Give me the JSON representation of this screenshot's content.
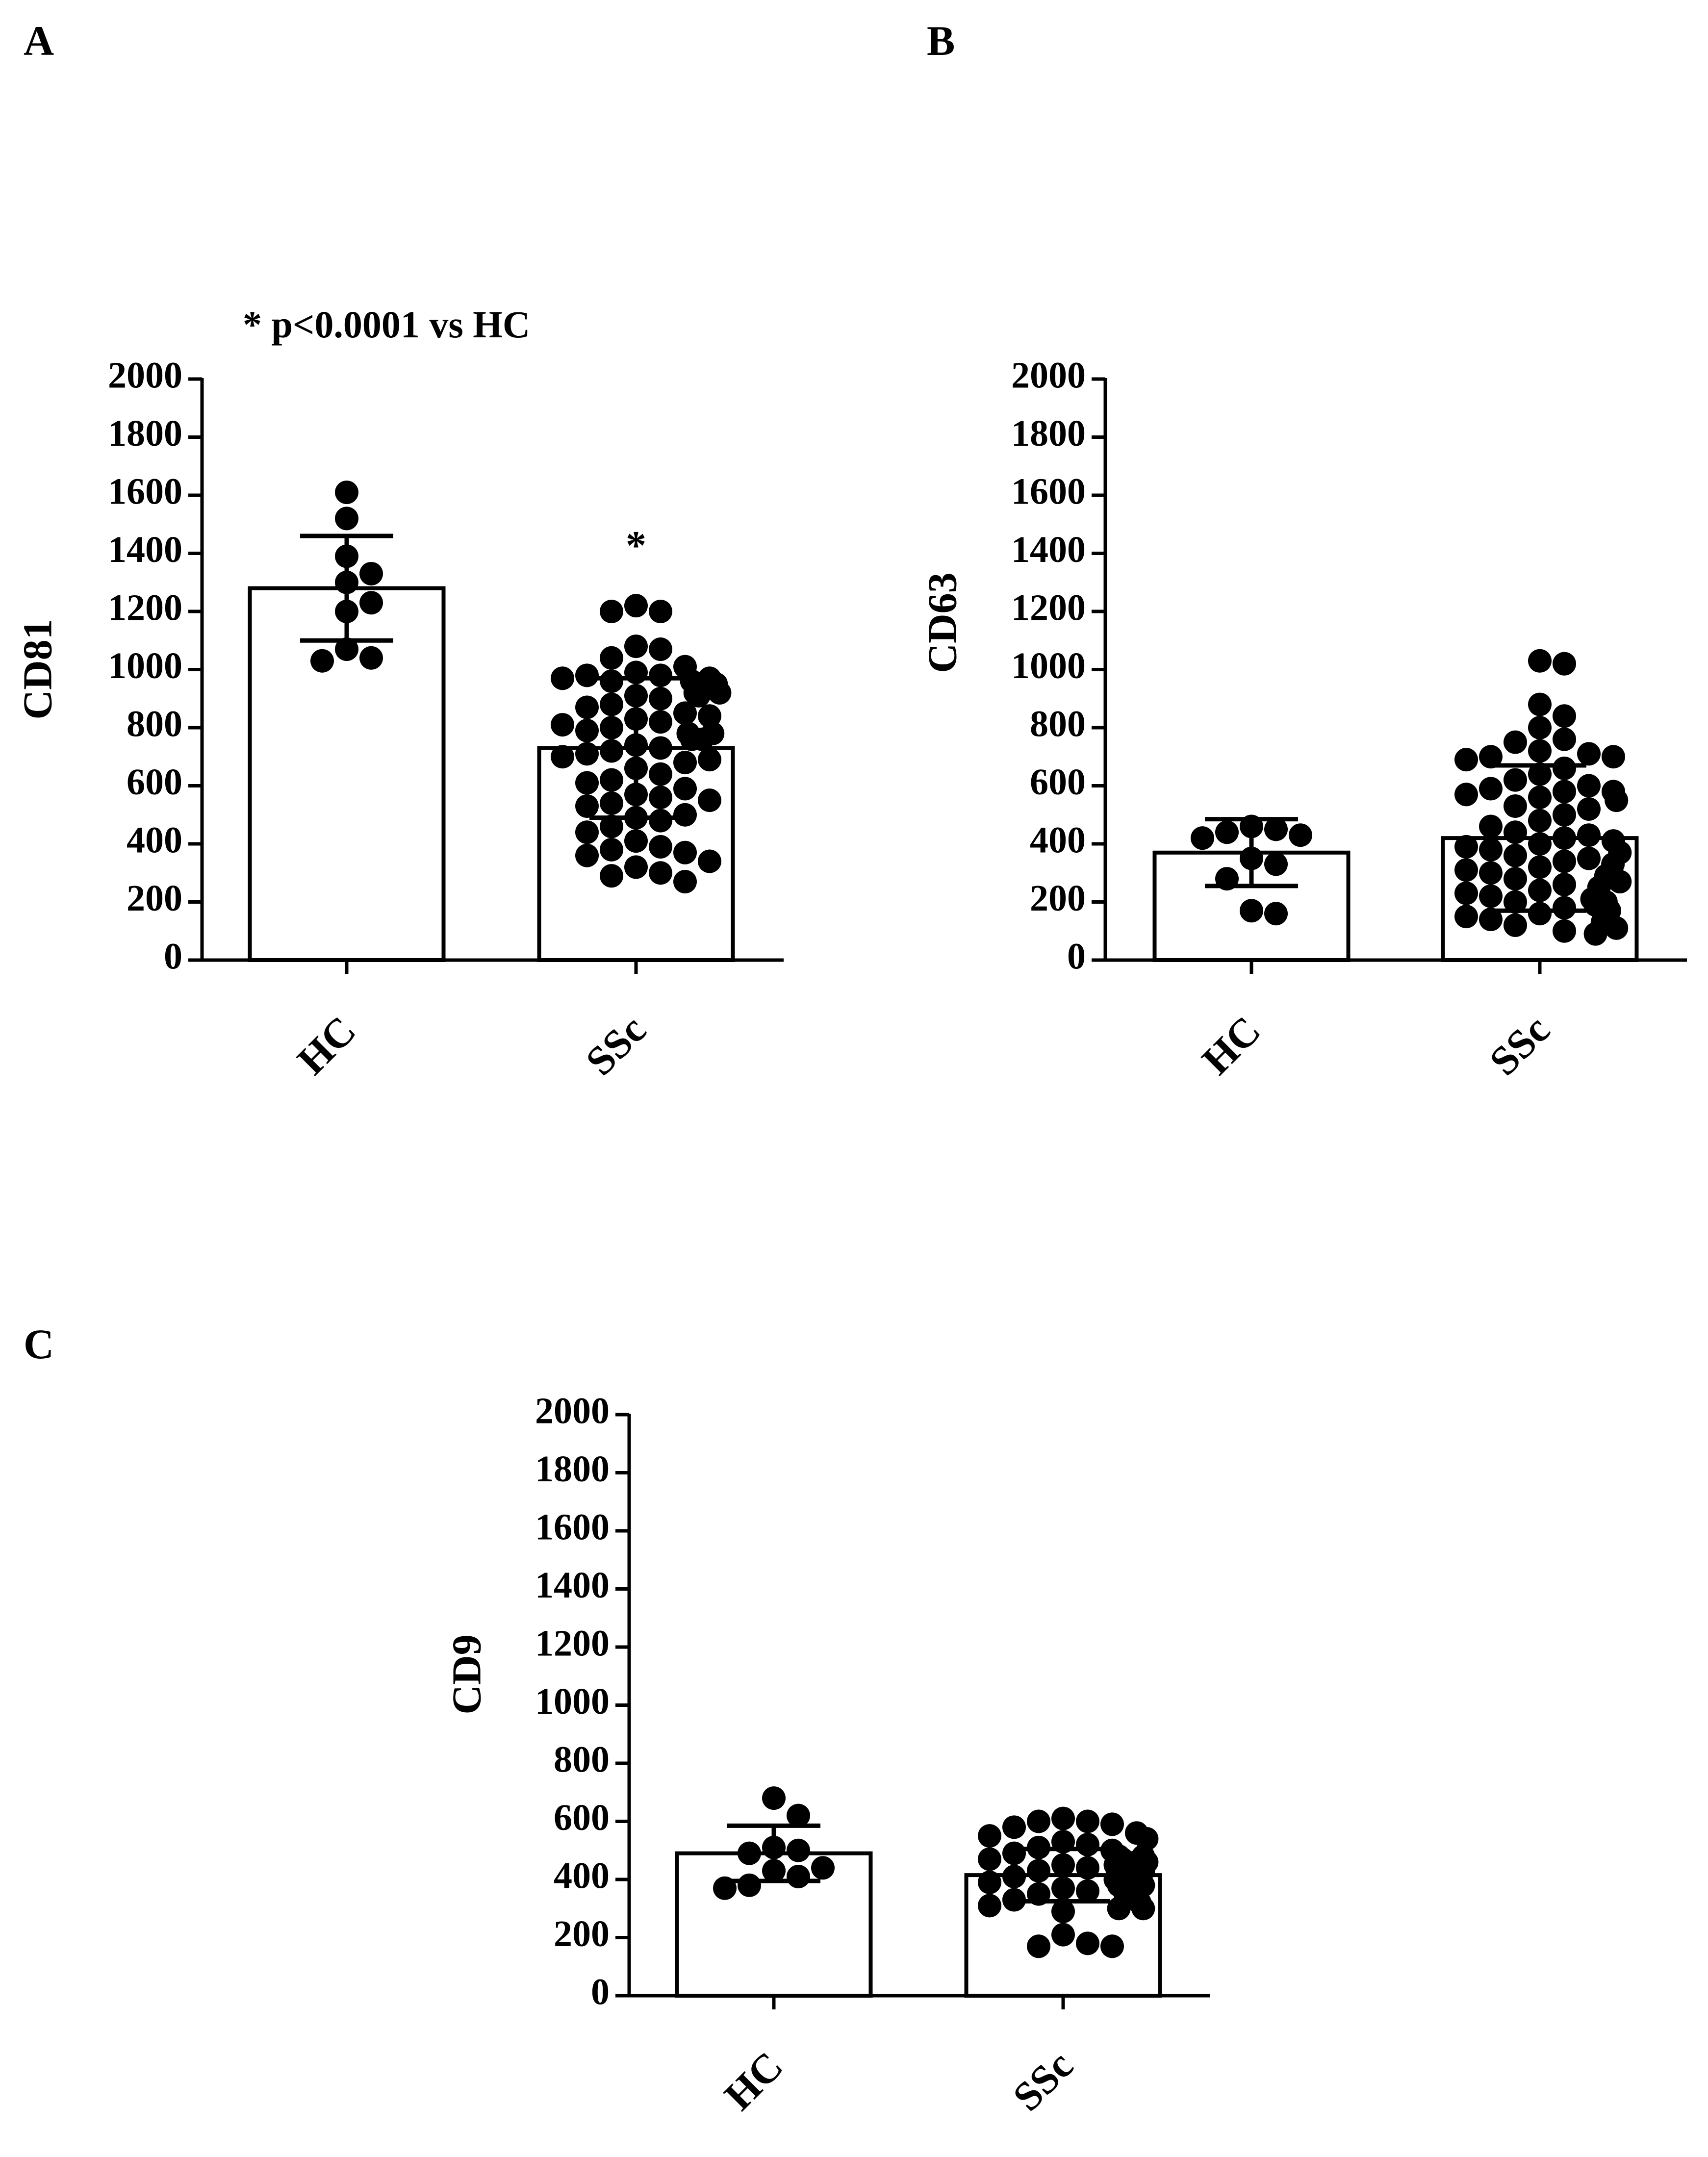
{
  "panels": [
    {
      "letter": "A"
    },
    {
      "letter": "B"
    },
    {
      "letter": "C"
    }
  ],
  "annotations": {
    "panel_a_note": "* p<0.0001 vs HC",
    "panel_a_star": "*"
  },
  "chart_data": [
    {
      "type": "bar",
      "panel": "A",
      "ylabel": "CD81",
      "xlabel": "",
      "ylim": [
        0,
        2000
      ],
      "yticks": [
        0,
        200,
        400,
        600,
        800,
        1000,
        1200,
        1400,
        1600,
        1800,
        2000
      ],
      "categories": [
        "HC",
        "SSc"
      ],
      "means": [
        1280,
        730
      ],
      "sd": [
        180,
        240
      ],
      "points": [
        [
          1610,
          1520,
          1390,
          1330,
          1300,
          1230,
          1200,
          1070,
          1040,
          1030
        ],
        [
          1220,
          1200,
          1200,
          1080,
          1070,
          1040,
          1010,
          990,
          980,
          980,
          970,
          970,
          960,
          960,
          950,
          950,
          920,
          920,
          910,
          910,
          900,
          880,
          870,
          850,
          840,
          830,
          820,
          810,
          800,
          790,
          780,
          780,
          760,
          760,
          740,
          730,
          720,
          710,
          700,
          690,
          680,
          660,
          640,
          620,
          610,
          590,
          570,
          560,
          550,
          540,
          530,
          500,
          490,
          480,
          460,
          440,
          410,
          390,
          380,
          370,
          360,
          340,
          320,
          300,
          290,
          270
        ]
      ]
    },
    {
      "type": "bar",
      "panel": "B",
      "ylabel": "CD63",
      "xlabel": "",
      "ylim": [
        0,
        2000
      ],
      "yticks": [
        0,
        200,
        400,
        600,
        800,
        1000,
        1200,
        1400,
        1600,
        1800,
        2000
      ],
      "categories": [
        "HC",
        "SSc"
      ],
      "means": [
        370,
        420
      ],
      "sd": [
        115,
        250
      ],
      "points": [
        [
          460,
          450,
          440,
          430,
          420,
          350,
          330,
          280,
          170,
          160
        ],
        [
          1030,
          1020,
          880,
          840,
          800,
          760,
          750,
          720,
          710,
          700,
          700,
          690,
          660,
          640,
          620,
          600,
          590,
          580,
          580,
          570,
          560,
          550,
          530,
          520,
          500,
          480,
          460,
          440,
          430,
          420,
          410,
          400,
          390,
          380,
          370,
          360,
          350,
          340,
          330,
          320,
          310,
          300,
          290,
          280,
          270,
          260,
          250,
          240,
          230,
          220,
          210,
          200,
          200,
          190,
          180,
          170,
          160,
          150,
          140,
          130,
          120,
          110,
          100,
          90
        ]
      ]
    },
    {
      "type": "bar",
      "panel": "C",
      "ylabel": "CD9",
      "xlabel": "",
      "ylim": [
        0,
        2000
      ],
      "yticks": [
        0,
        200,
        400,
        600,
        800,
        1000,
        1200,
        1400,
        1600,
        1800,
        2000
      ],
      "categories": [
        "HC",
        "SSc"
      ],
      "means": [
        490,
        415
      ],
      "sd": [
        95,
        90
      ],
      "points": [
        [
          680,
          620,
          510,
          500,
          490,
          440,
          430,
          410,
          380,
          370
        ],
        [
          610,
          600,
          600,
          590,
          580,
          560,
          550,
          540,
          530,
          520,
          510,
          500,
          490,
          480,
          480,
          470,
          470,
          460,
          460,
          450,
          450,
          440,
          440,
          430,
          430,
          420,
          420,
          410,
          410,
          400,
          400,
          390,
          390,
          380,
          380,
          370,
          370,
          360,
          350,
          340,
          330,
          320,
          310,
          300,
          300,
          290,
          210,
          180,
          170,
          170
        ]
      ]
    }
  ]
}
